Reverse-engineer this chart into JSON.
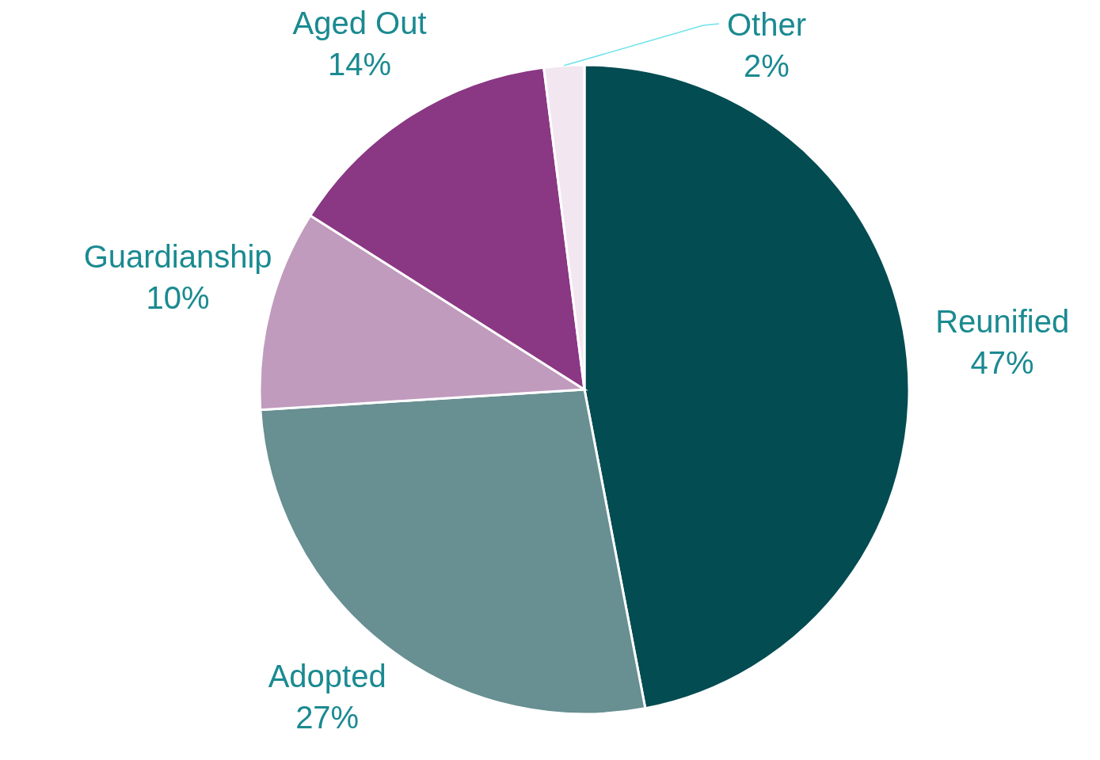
{
  "chart_data": {
    "type": "pie",
    "categories": [
      "Reunified",
      "Adopted",
      "Guardianship",
      "Aged Out",
      "Other"
    ],
    "values": [
      47,
      27,
      10,
      14,
      2
    ],
    "colors": [
      "#024c52",
      "#688f92",
      "#c09bbd",
      "#8a3784",
      "#f2e6f1"
    ],
    "value_labels": [
      "47%",
      "27%",
      "10%",
      "14%",
      "2%"
    ]
  }
}
